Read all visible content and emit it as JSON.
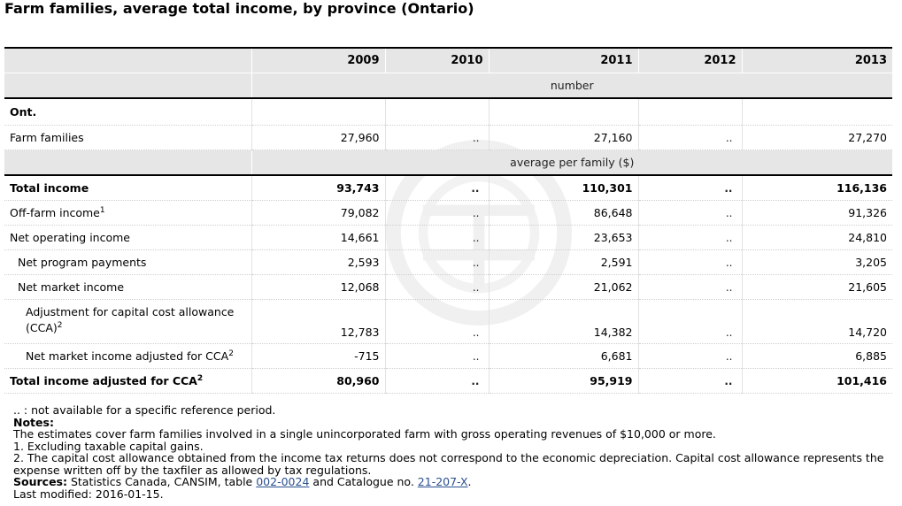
{
  "title": "Farm families, average total income, by province (Ontario)",
  "columns": [
    "2009",
    "2010",
    "2011",
    "2012",
    "2013"
  ],
  "unit_number": "number",
  "unit_average": "average per family ($)",
  "section_label": "Ont.",
  "farm_families": {
    "label": "Farm families",
    "values": [
      "27,960",
      "..",
      "27,160",
      "..",
      "27,270"
    ]
  },
  "rows": [
    {
      "label": "Total income",
      "sup": "",
      "values": [
        "93,743",
        "..",
        "110,301",
        "..",
        "116,136"
      ]
    },
    {
      "label": "Off-farm income",
      "sup": "1",
      "values": [
        "79,082",
        "..",
        "86,648",
        "..",
        "91,326"
      ]
    },
    {
      "label": "Net operating income",
      "sup": "",
      "values": [
        "14,661",
        "..",
        "23,653",
        "..",
        "24,810"
      ]
    },
    {
      "label": "Net program payments",
      "sup": "",
      "values": [
        "2,593",
        "..",
        "2,591",
        "..",
        "3,205"
      ]
    },
    {
      "label": "Net market income",
      "sup": "",
      "values": [
        "12,068",
        "..",
        "21,062",
        "..",
        "21,605"
      ]
    },
    {
      "label": "Adjustment for capital cost allowance (CCA)",
      "sup": "2",
      "values": [
        "12,783",
        "..",
        "14,382",
        "..",
        "14,720"
      ]
    },
    {
      "label": "Net market income adjusted for CCA",
      "sup": "2",
      "values": [
        "-715",
        "..",
        "6,681",
        "..",
        "6,885"
      ]
    },
    {
      "label": "Total income adjusted for CCA",
      "sup": "2",
      "values": [
        "80,960",
        "..",
        "95,919",
        "..",
        "101,416"
      ]
    }
  ],
  "notes": {
    "legend": ".. : not available for a specific reference period.",
    "notes_heading": "Notes:",
    "note_main": "The estimates cover farm families involved in a single unincorporated farm with gross operating revenues of $10,000 or more.",
    "note_1": "1. Excluding taxable capital gains.",
    "note_2": "2. The capital cost allowance obtained from the income tax returns does not correspond to the economic depreciation. Capital cost allowance represents the expense written off by the taxfiler as allowed by tax regulations.",
    "sources_heading": "Sources:",
    "sources_text": "Statistics Canada, CANSIM, table",
    "sources_link1": "002-0024",
    "sources_and": "and Catalogue no.",
    "sources_link2": "21-207-X",
    "sources_end": ".",
    "last_modified": "Last modified: 2016-01-15."
  },
  "colors": {
    "header_bg": "#e6e6e6",
    "link": "#2a4f8f"
  },
  "watermark_icon": "statcan-watermark-icon"
}
